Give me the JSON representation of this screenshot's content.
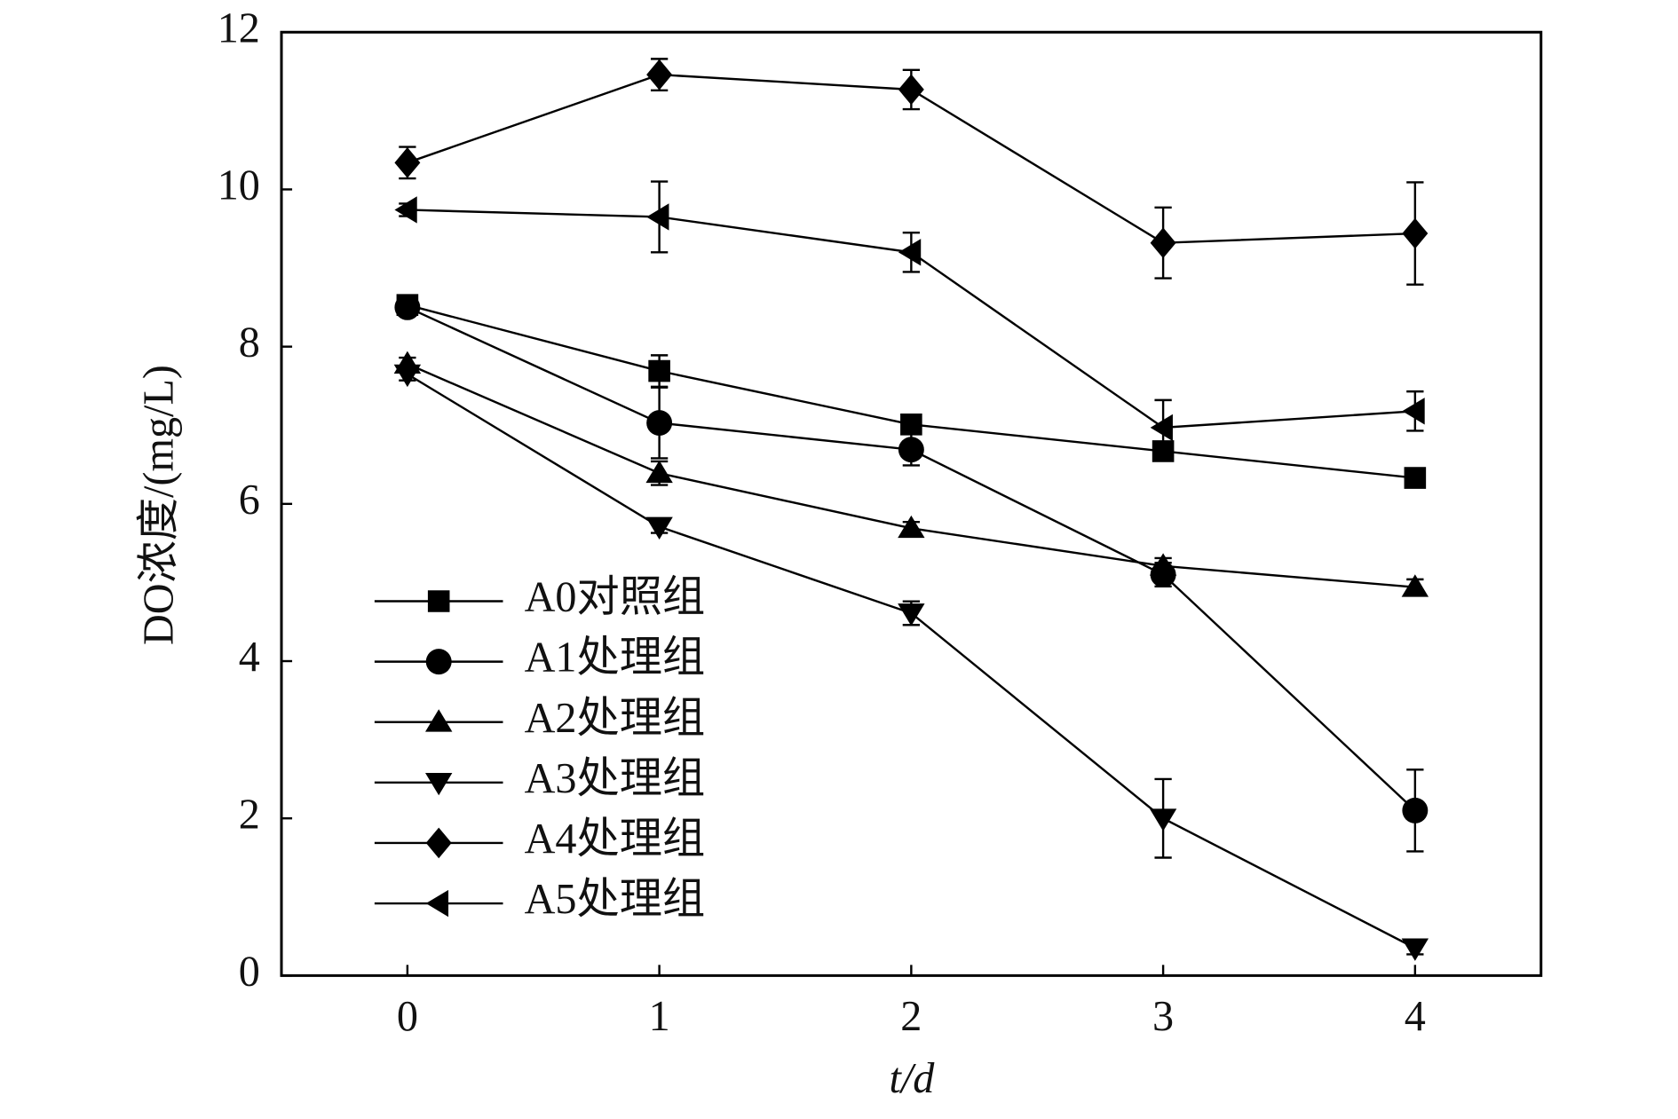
{
  "chart_data": {
    "type": "line",
    "x_label": "t/d",
    "y_label": "DO浓度/(mg/L)",
    "x": [
      0,
      1,
      2,
      3,
      4
    ],
    "xlim": [
      -0.5,
      4.5
    ],
    "xticks": [
      0,
      1,
      2,
      3,
      4
    ],
    "ylim": [
      0,
      12
    ],
    "yticks": [
      0,
      2,
      4,
      6,
      8,
      10,
      12
    ],
    "legend": "lower-left",
    "series": [
      {
        "name": "A0对照组",
        "color": "#000000",
        "marker": "square",
        "values": [
          8.53,
          7.69,
          7.01,
          6.67,
          6.33
        ],
        "errors": [
          0.08,
          0.2,
          0.1,
          0.08,
          0.08
        ]
      },
      {
        "name": "A1处理组",
        "color": "#000000",
        "marker": "circle",
        "values": [
          8.5,
          7.03,
          6.69,
          5.1,
          2.1
        ],
        "errors": [
          0.08,
          0.45,
          0.2,
          0.15,
          0.52
        ]
      },
      {
        "name": "A2处理组",
        "color": "#000000",
        "marker": "triangle-up",
        "values": [
          7.78,
          6.39,
          5.69,
          5.21,
          4.94
        ],
        "errors": [
          0.08,
          0.15,
          0.08,
          0.1,
          0.1
        ]
      },
      {
        "name": "A3处理组",
        "color": "#000000",
        "marker": "triangle-down",
        "values": [
          7.65,
          5.71,
          4.61,
          2.0,
          0.35
        ],
        "errors": [
          0.08,
          0.08,
          0.15,
          0.5,
          0.08
        ]
      },
      {
        "name": "A4处理组",
        "color": "#000000",
        "marker": "diamond",
        "values": [
          10.34,
          11.46,
          11.27,
          9.32,
          9.44
        ],
        "errors": [
          0.2,
          0.2,
          0.25,
          0.45,
          0.65
        ]
      },
      {
        "name": "A5处理组",
        "color": "#000000",
        "marker": "triangle-left",
        "values": [
          9.74,
          9.65,
          9.2,
          6.97,
          7.18
        ],
        "errors": [
          0.08,
          0.45,
          0.25,
          0.35,
          0.25
        ]
      }
    ]
  }
}
